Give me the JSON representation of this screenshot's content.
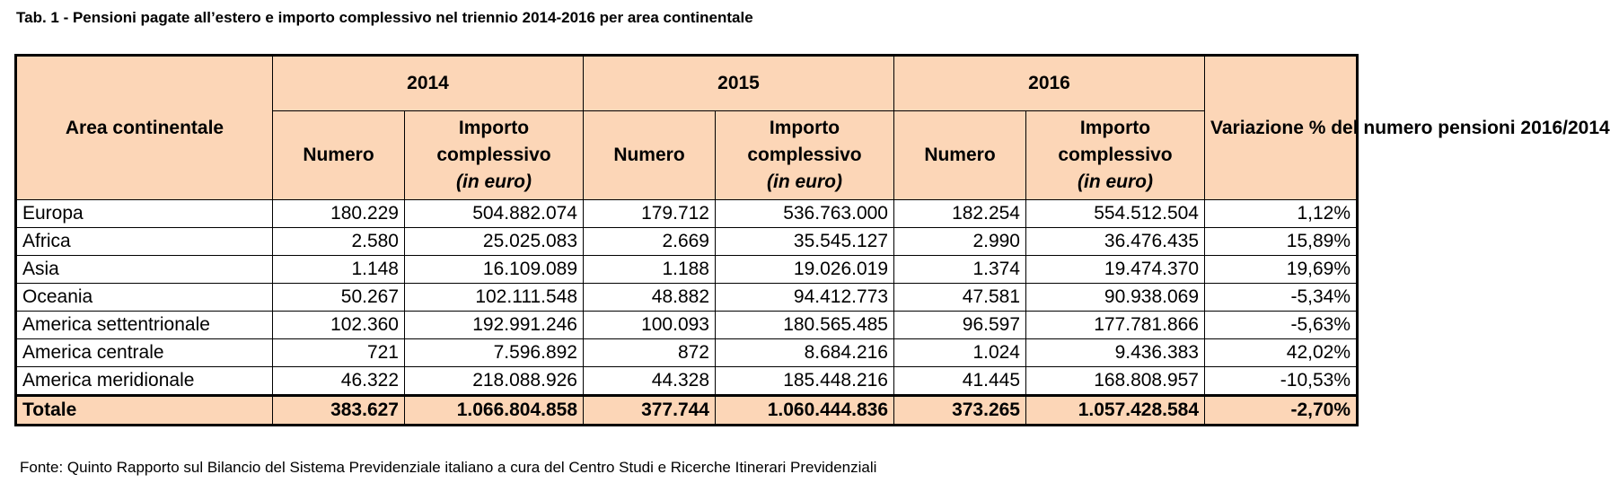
{
  "title": "Tab. 1 - Pensioni pagate all’estero e importo complessivo nel triennio 2014-2016 per area continentale",
  "header": {
    "area": "Area continentale",
    "years": [
      "2014",
      "2015",
      "2016"
    ],
    "numero": "Numero",
    "importo": "Importo complessivo",
    "unit": "(in euro)",
    "variazione": "Variazione % del numero pensioni 2016/2014"
  },
  "rows": [
    {
      "area": "Europa",
      "n2014": "180.229",
      "i2014": "504.882.074",
      "n2015": "179.712",
      "i2015": "536.763.000",
      "n2016": "182.254",
      "i2016": "554.512.504",
      "var": "1,12%"
    },
    {
      "area": "Africa",
      "n2014": "2.580",
      "i2014": "25.025.083",
      "n2015": "2.669",
      "i2015": "35.545.127",
      "n2016": "2.990",
      "i2016": "36.476.435",
      "var": "15,89%"
    },
    {
      "area": "Asia",
      "n2014": "1.148",
      "i2014": "16.109.089",
      "n2015": "1.188",
      "i2015": "19.026.019",
      "n2016": "1.374",
      "i2016": "19.474.370",
      "var": "19,69%"
    },
    {
      "area": "Oceania",
      "n2014": "50.267",
      "i2014": "102.111.548",
      "n2015": "48.882",
      "i2015": "94.412.773",
      "n2016": "47.581",
      "i2016": "90.938.069",
      "var": "-5,34%"
    },
    {
      "area": "America settentrionale",
      "n2014": "102.360",
      "i2014": "192.991.246",
      "n2015": "100.093",
      "i2015": "180.565.485",
      "n2016": "96.597",
      "i2016": "177.781.866",
      "var": "-5,63%"
    },
    {
      "area": "America centrale",
      "n2014": "721",
      "i2014": "7.596.892",
      "n2015": "872",
      "i2015": "8.684.216",
      "n2016": "1.024",
      "i2016": "9.436.383",
      "var": "42,02%"
    },
    {
      "area": "America meridionale",
      "n2014": "46.322",
      "i2014": "218.088.926",
      "n2015": "44.328",
      "i2015": "185.448.216",
      "n2016": "41.445",
      "i2016": "168.808.957",
      "var": "-10,53%"
    }
  ],
  "total": {
    "area": "Totale",
    "n2014": "383.627",
    "i2014": "1.066.804.858",
    "n2015": "377.744",
    "i2015": "1.060.444.836",
    "n2016": "373.265",
    "i2016": "1.057.428.584",
    "var": "-2,70%"
  },
  "source": "Fonte: Quinto Rapporto sul Bilancio del Sistema Previdenziale italiano a cura del Centro Studi e Ricerche Itinerari Previdenziali",
  "colors": {
    "header_bg": "#fcd6b7",
    "border": "#000000"
  }
}
